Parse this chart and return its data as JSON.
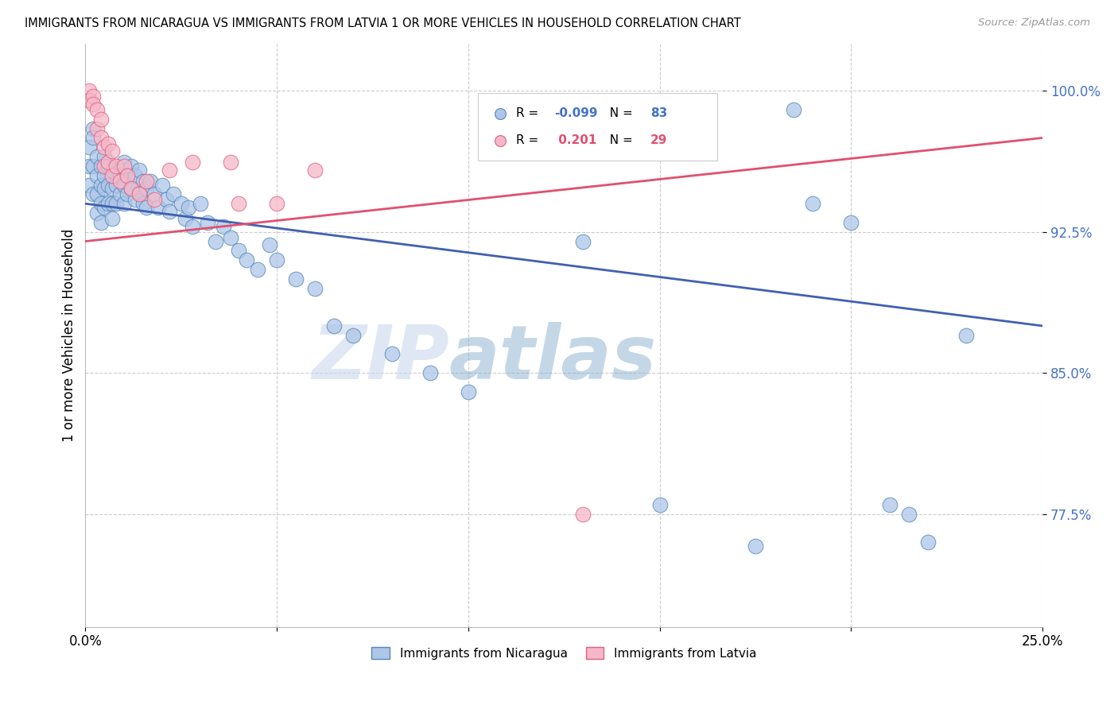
{
  "title": "IMMIGRANTS FROM NICARAGUA VS IMMIGRANTS FROM LATVIA 1 OR MORE VEHICLES IN HOUSEHOLD CORRELATION CHART",
  "source": "Source: ZipAtlas.com",
  "ylabel": "1 or more Vehicles in Household",
  "ytick_labels": [
    "100.0%",
    "92.5%",
    "85.0%",
    "77.5%"
  ],
  "ytick_values": [
    1.0,
    0.925,
    0.85,
    0.775
  ],
  "xmin": 0.0,
  "xmax": 0.25,
  "ymin": 0.715,
  "ymax": 1.025,
  "nicaragua_color": "#aec6e8",
  "nicaragua_edge": "#5588bb",
  "latvia_color": "#f5b8c8",
  "latvia_edge": "#e06080",
  "nicaragua_line_color": "#4060b0",
  "latvia_line_color": "#e05070",
  "nicaragua_R": -0.099,
  "nicaragua_N": 83,
  "latvia_R": 0.201,
  "latvia_N": 29,
  "watermark_zip": "ZIP",
  "watermark_atlas": "atlas",
  "nicaragua_x": [
    0.001,
    0.001,
    0.001,
    0.002,
    0.002,
    0.002,
    0.002,
    0.003,
    0.003,
    0.003,
    0.003,
    0.004,
    0.004,
    0.004,
    0.004,
    0.005,
    0.005,
    0.005,
    0.005,
    0.006,
    0.006,
    0.006,
    0.007,
    0.007,
    0.007,
    0.007,
    0.008,
    0.008,
    0.009,
    0.009,
    0.01,
    0.01,
    0.01,
    0.011,
    0.011,
    0.012,
    0.012,
    0.013,
    0.013,
    0.014,
    0.014,
    0.015,
    0.015,
    0.016,
    0.016,
    0.017,
    0.018,
    0.019,
    0.02,
    0.021,
    0.022,
    0.023,
    0.025,
    0.026,
    0.027,
    0.028,
    0.03,
    0.032,
    0.034,
    0.036,
    0.038,
    0.04,
    0.042,
    0.045,
    0.048,
    0.05,
    0.055,
    0.06,
    0.065,
    0.07,
    0.08,
    0.09,
    0.1,
    0.13,
    0.15,
    0.175,
    0.185,
    0.19,
    0.2,
    0.21,
    0.215,
    0.22,
    0.23
  ],
  "nicaragua_y": [
    0.97,
    0.96,
    0.95,
    0.98,
    0.975,
    0.96,
    0.945,
    0.965,
    0.955,
    0.945,
    0.935,
    0.96,
    0.95,
    0.94,
    0.93,
    0.965,
    0.955,
    0.948,
    0.938,
    0.96,
    0.95,
    0.94,
    0.958,
    0.948,
    0.94,
    0.932,
    0.95,
    0.94,
    0.955,
    0.945,
    0.962,
    0.95,
    0.94,
    0.955,
    0.945,
    0.96,
    0.948,
    0.955,
    0.942,
    0.958,
    0.946,
    0.952,
    0.94,
    0.948,
    0.938,
    0.952,
    0.945,
    0.938,
    0.95,
    0.942,
    0.936,
    0.945,
    0.94,
    0.932,
    0.938,
    0.928,
    0.94,
    0.93,
    0.92,
    0.928,
    0.922,
    0.915,
    0.91,
    0.905,
    0.918,
    0.91,
    0.9,
    0.895,
    0.875,
    0.87,
    0.86,
    0.85,
    0.84,
    0.92,
    0.78,
    0.758,
    0.99,
    0.94,
    0.93,
    0.78,
    0.775,
    0.76,
    0.87
  ],
  "latvia_x": [
    0.001,
    0.001,
    0.002,
    0.002,
    0.003,
    0.003,
    0.004,
    0.004,
    0.005,
    0.005,
    0.006,
    0.006,
    0.007,
    0.007,
    0.008,
    0.009,
    0.01,
    0.011,
    0.012,
    0.014,
    0.016,
    0.018,
    0.022,
    0.028,
    0.038,
    0.04,
    0.05,
    0.06,
    0.13
  ],
  "latvia_y": [
    1.0,
    0.995,
    0.997,
    0.993,
    0.99,
    0.98,
    0.985,
    0.975,
    0.97,
    0.96,
    0.972,
    0.962,
    0.968,
    0.955,
    0.96,
    0.952,
    0.96,
    0.955,
    0.948,
    0.945,
    0.952,
    0.942,
    0.958,
    0.962,
    0.962,
    0.94,
    0.94,
    0.958,
    0.775
  ]
}
